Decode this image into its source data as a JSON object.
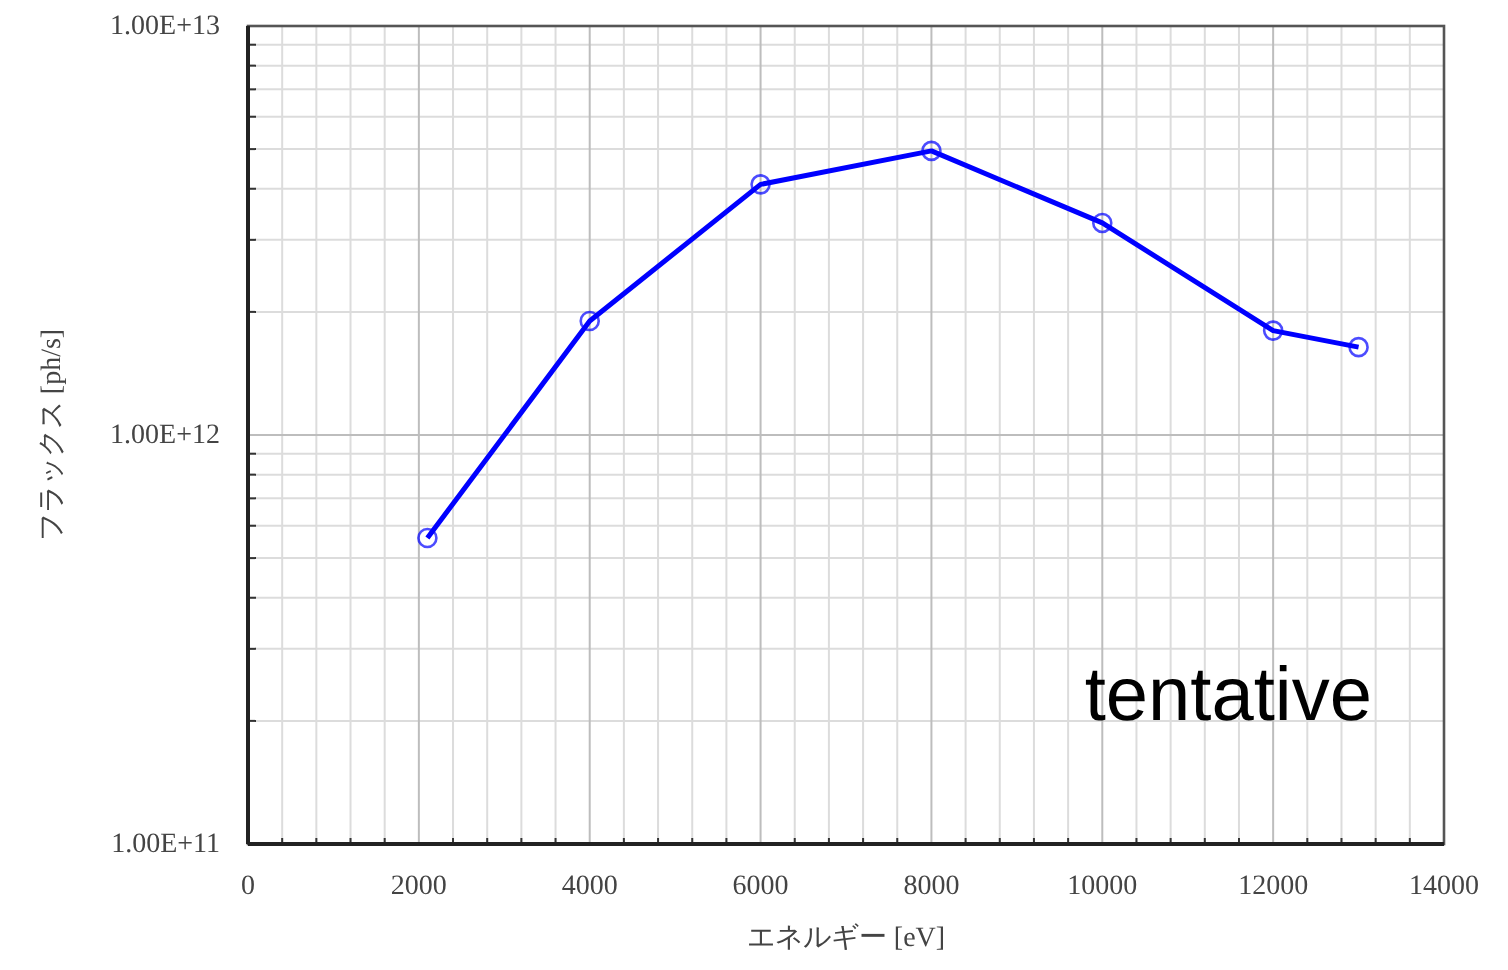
{
  "chart_data": {
    "type": "line",
    "xlabel": "エネルギー [eV]",
    "ylabel": "フラックス [ph/s]",
    "x": [
      2100,
      4000,
      6000,
      8000,
      10000,
      12000,
      13000
    ],
    "series": [
      {
        "color": "#0000ff",
        "values": [
          560000000000.0,
          1900000000000.0,
          4100000000000.0,
          4950000000000.0,
          3300000000000.0,
          1800000000000.0,
          1640000000000.0
        ]
      }
    ],
    "xlim": [
      0,
      14000
    ],
    "xticks": [
      0,
      2000,
      4000,
      6000,
      8000,
      10000,
      12000,
      14000
    ],
    "ylim": [
      100000000000.0,
      10000000000000.0
    ],
    "yticks": [
      {
        "value": 100000000000.0,
        "label": "1.00E+11"
      },
      {
        "value": 1000000000000.0,
        "label": "1.00E+12"
      },
      {
        "value": 10000000000000.0,
        "label": "1.00E+13"
      }
    ],
    "log": "y",
    "grid": true,
    "marker": "circle",
    "line_style": "solid",
    "annotations": [
      "tentative"
    ]
  }
}
